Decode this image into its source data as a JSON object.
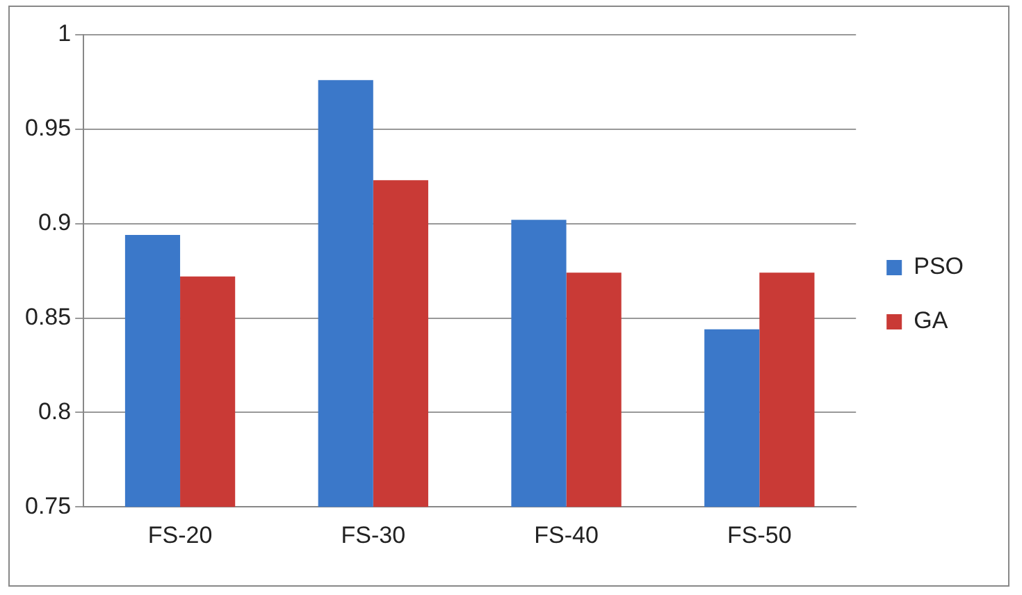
{
  "chart_data": {
    "type": "bar",
    "categories": [
      "FS-20",
      "FS-30",
      "FS-40",
      "FS-50"
    ],
    "series": [
      {
        "name": "PSO",
        "color": "#3b78c9",
        "values": [
          0.894,
          0.976,
          0.902,
          0.844
        ]
      },
      {
        "name": "GA",
        "color": "#c93a36",
        "values": [
          0.872,
          0.923,
          0.874,
          0.874
        ]
      }
    ],
    "ylim": [
      0.75,
      1
    ],
    "yticks": [
      0.75,
      0.8,
      0.85,
      0.9,
      0.95,
      1
    ],
    "grid": "y",
    "legend": "right"
  }
}
